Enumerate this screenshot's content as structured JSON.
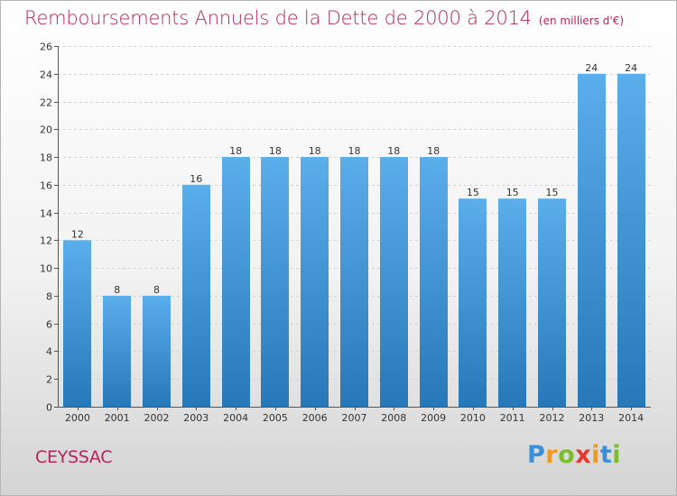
{
  "header": {
    "title": "Remboursements Annuels de la Dette de 2000 à 2014",
    "unit": "(en milliers d'€)"
  },
  "footer": {
    "town": "CEYSSAC",
    "logo_letters": [
      "P",
      "r",
      "o",
      "x",
      "i",
      "t",
      "i"
    ]
  },
  "colors": {
    "title": "#b3265c",
    "bar_top": "#5aaeea",
    "bar_bottom": "#2778b8"
  },
  "chart_data": {
    "type": "bar",
    "title": "Remboursements Annuels de la Dette de 2000 à 2014",
    "categories": [
      "2000",
      "2001",
      "2002",
      "2003",
      "2004",
      "2005",
      "2006",
      "2007",
      "2008",
      "2009",
      "2010",
      "2011",
      "2012",
      "2013",
      "2014"
    ],
    "values": [
      12,
      8,
      8,
      16,
      18,
      18,
      18,
      18,
      18,
      18,
      15,
      15,
      15,
      24,
      24
    ],
    "data_labels": [
      "12",
      "8",
      "8",
      "16",
      "18",
      "18",
      "18",
      "18",
      "18",
      "18",
      "15",
      "15",
      "15",
      "24",
      "24"
    ],
    "ylim": [
      0,
      26
    ],
    "yticks": [
      0,
      2,
      4,
      6,
      8,
      10,
      12,
      14,
      16,
      18,
      20,
      22,
      24,
      26
    ],
    "ytick_labels": [
      "0",
      "2",
      "4",
      "6",
      "8",
      "10",
      "12",
      "14",
      "16",
      "18",
      "20",
      "22",
      "24",
      "26"
    ],
    "grid": true,
    "legend": "none"
  }
}
